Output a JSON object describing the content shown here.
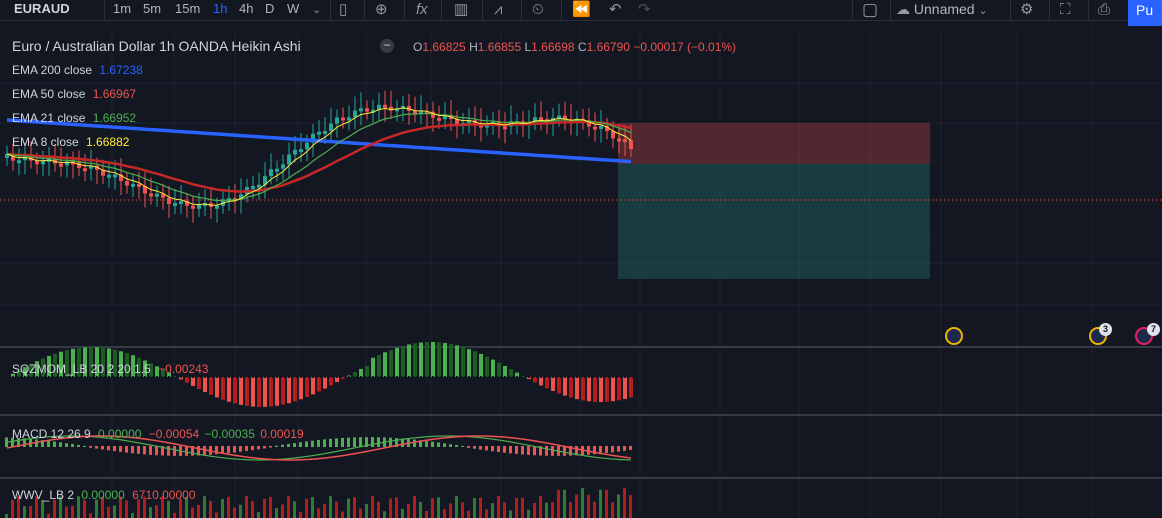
{
  "toolbar": {
    "symbol": "EURAUD",
    "intervals": [
      "1m",
      "5m",
      "15m",
      "1h",
      "4h",
      "D",
      "W"
    ],
    "active_interval": "1h",
    "layout_name": "Unnamed",
    "publish_label": "Pu"
  },
  "chart": {
    "title": "Euro / Australian Dollar  1h  OANDA  Heikin Ashi",
    "ohlc": {
      "o_label": "O",
      "o": "1.66825",
      "h_label": "H",
      "h": "1.66855",
      "l_label": "L",
      "l": "1.66698",
      "c_label": "C",
      "c": "1.66790",
      "chg": "−0.00017 (−0.01%)"
    },
    "indicators": [
      {
        "label": "EMA 200 close",
        "value": "1.67238",
        "color": "#2962ff"
      },
      {
        "label": "EMA 50 close",
        "value": "1.66967",
        "color": "#ef5350"
      },
      {
        "label": "EMA 21 close",
        "value": "1.66952",
        "color": "#4caf50"
      },
      {
        "label": "EMA 8 close",
        "value": "1.66882",
        "color": "#ffeb3b"
      }
    ]
  },
  "panes": {
    "sqz": {
      "label": "SQZMOM_LB 20 2 20 1.5",
      "v1": "−0.00243",
      "v2": "0.00000"
    },
    "macd": {
      "label": "MACD 12 26 9",
      "v1": "0.00000",
      "v2": "−0.00054",
      "v3": "−0.00035",
      "v4": "0.00019"
    },
    "wwv": {
      "label": "WWV_LB 2",
      "v1": "0.00000",
      "v2": "6710.00000"
    }
  },
  "events": {
    "badge_a": "3",
    "badge_b": "7"
  },
  "colors": {
    "bg": "#131722",
    "up": "#26a69a",
    "down": "#ef5350",
    "accent": "#2962ff"
  }
}
